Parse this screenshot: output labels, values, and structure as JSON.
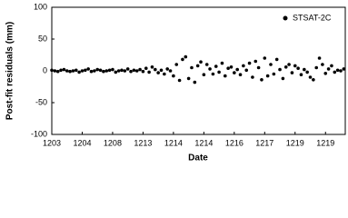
{
  "chart_data": {
    "type": "scatter",
    "xlabel": "Date",
    "ylabel": "Post-fit residuals (mm)",
    "xlim": [
      0,
      9.65
    ],
    "ylim": [
      -100,
      100
    ],
    "xticks": [
      {
        "value": 0,
        "label": "1203"
      },
      {
        "value": 1,
        "label": "1204"
      },
      {
        "value": 2,
        "label": "1208"
      },
      {
        "value": 3,
        "label": "1213"
      },
      {
        "value": 4,
        "label": "1214"
      },
      {
        "value": 5,
        "label": "1214"
      },
      {
        "value": 6,
        "label": "1216"
      },
      {
        "value": 7,
        "label": "1217"
      },
      {
        "value": 8,
        "label": "1219"
      },
      {
        "value": 9,
        "label": "1219"
      }
    ],
    "yticks": [
      -100,
      -50,
      0,
      50,
      100
    ],
    "legend": "upper right",
    "series": [
      {
        "name": "STSAT-2C",
        "color": "#000000",
        "x": [
          0.0,
          0.1,
          0.2,
          0.3,
          0.4,
          0.5,
          0.6,
          0.7,
          0.8,
          0.9,
          1.0,
          1.1,
          1.2,
          1.3,
          1.4,
          1.5,
          1.6,
          1.7,
          1.8,
          1.9,
          2.0,
          2.1,
          2.2,
          2.3,
          2.4,
          2.5,
          2.6,
          2.7,
          2.8,
          2.9,
          3.0,
          3.1,
          3.2,
          3.3,
          3.4,
          3.5,
          3.6,
          3.7,
          3.8,
          3.9,
          4.0,
          4.1,
          4.2,
          4.3,
          4.4,
          4.5,
          4.6,
          4.7,
          4.8,
          4.9,
          5.0,
          5.1,
          5.2,
          5.3,
          5.4,
          5.5,
          5.6,
          5.7,
          5.8,
          5.9,
          6.0,
          6.1,
          6.2,
          6.3,
          6.4,
          6.5,
          6.6,
          6.7,
          6.8,
          6.9,
          7.0,
          7.1,
          7.2,
          7.3,
          7.4,
          7.5,
          7.6,
          7.7,
          7.8,
          7.9,
          8.0,
          8.1,
          8.2,
          8.3,
          8.4,
          8.5,
          8.6,
          8.7,
          8.8,
          8.9,
          9.0,
          9.1,
          9.2,
          9.3,
          9.4,
          9.5,
          9.6
        ],
        "values": [
          1,
          0,
          -1,
          1,
          2,
          0,
          -1,
          0,
          1,
          -2,
          0,
          1,
          3,
          -1,
          0,
          2,
          1,
          -1,
          0,
          1,
          2,
          -2,
          0,
          1,
          0,
          3,
          -1,
          1,
          0,
          2,
          -1,
          4,
          -2,
          6,
          2,
          -3,
          1,
          -5,
          3,
          0,
          -8,
          10,
          -15,
          18,
          22,
          -12,
          5,
          -18,
          8,
          14,
          -6,
          10,
          3,
          -5,
          7,
          -2,
          12,
          -8,
          4,
          6,
          -3,
          2,
          -6,
          8,
          1,
          12,
          -10,
          15,
          5,
          -14,
          20,
          -8,
          10,
          -5,
          18,
          2,
          -12,
          6,
          10,
          -3,
          8,
          4,
          -6,
          2,
          -2,
          -10,
          -14,
          5,
          20,
          10,
          -4,
          3,
          8,
          -2,
          1,
          0,
          3
        ]
      }
    ]
  }
}
